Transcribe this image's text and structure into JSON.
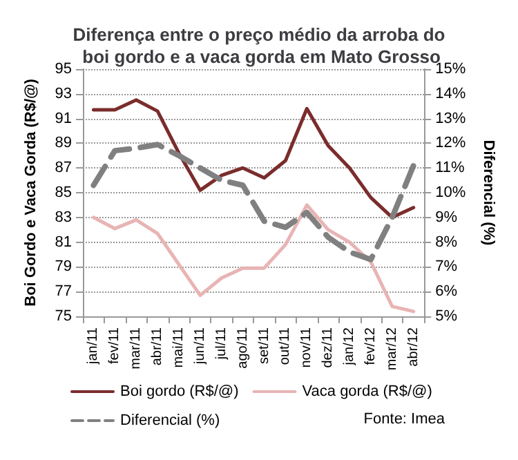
{
  "chart_data": {
    "type": "line",
    "title": "Diferença entre o preço médio da arroba do boi gordo e a vaca gorda em Mato Grosso",
    "categories": [
      "jan/11",
      "fev/11",
      "mar/11",
      "abr/11",
      "mai/11",
      "jun/11",
      "jul/11",
      "ago/11",
      "set/11",
      "out/11",
      "nov/11",
      "dez/11",
      "jan/12",
      "fev/12",
      "mar/12",
      "abr/12"
    ],
    "ylabel": "Boi Gordo e Vaca Gorda (R$/@)",
    "y2label": "Diferencial (%)",
    "series": [
      {
        "name": "Boi gordo (R$/@)",
        "color": "#7b2c2c",
        "line_style": "solid",
        "values": [
          91.7,
          91.7,
          92.5,
          91.6,
          88.2,
          85.2,
          86.4,
          87.0,
          86.2,
          87.6,
          91.8,
          88.8,
          87.0,
          84.6,
          83.0,
          83.8
        ]
      },
      {
        "name": "Vaca gorda (R$/@)",
        "color": "#e8b4b4",
        "line_style": "solid",
        "values": [
          83.0,
          82.1,
          82.8,
          81.7,
          79.2,
          76.7,
          78.1,
          78.9,
          78.9,
          80.8,
          84.0,
          82.0,
          81.0,
          79.4,
          75.8,
          75.4
        ]
      },
      {
        "name": "Diferencial (%)",
        "color": "#808080",
        "line_style": "dashed",
        "axis": "y2",
        "values": [
          10.3,
          11.7,
          11.8,
          11.95,
          11.5,
          11.0,
          10.5,
          10.3,
          8.85,
          8.6,
          9.2,
          8.2,
          7.6,
          7.3,
          9.0,
          11.1
        ]
      }
    ],
    "ylim": [
      75,
      95
    ],
    "yticks": [
      75,
      77,
      79,
      81,
      83,
      85,
      87,
      89,
      91,
      93,
      95
    ],
    "y2lim": [
      5,
      15
    ],
    "y2ticks": [
      {
        "value": 5,
        "label": "5%"
      },
      {
        "value": 6,
        "label": "6%"
      },
      {
        "value": 7,
        "label": "7%"
      },
      {
        "value": 8,
        "label": "8%"
      },
      {
        "value": 9,
        "label": "9%"
      },
      {
        "value": 10,
        "label": "10%"
      },
      {
        "value": 11,
        "label": "11%"
      },
      {
        "value": 12,
        "label": "12%"
      },
      {
        "value": 13,
        "label": "13%"
      },
      {
        "value": 14,
        "label": "14%"
      },
      {
        "value": 15,
        "label": "15%"
      }
    ],
    "grid": "y",
    "legend": "bottom",
    "marker": "none",
    "annotations": [
      "Fonte: Imea"
    ]
  }
}
